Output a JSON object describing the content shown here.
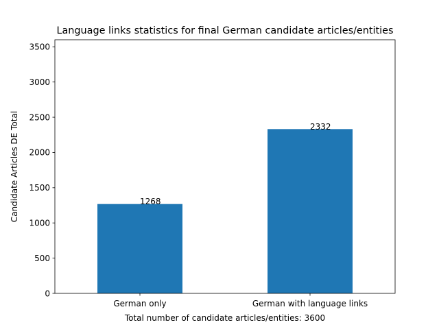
{
  "chart_data": {
    "type": "bar",
    "title": "Language links statistics for final German candidate articles/entities",
    "xlabel": "Total number of candidate articles/entities: 3600",
    "ylabel": "Candidate Articles DE Total",
    "categories": [
      "German only",
      "German with language links"
    ],
    "values": [
      1268,
      2332
    ],
    "data_labels": [
      "1268",
      "2332"
    ],
    "ylim": [
      0,
      3600
    ],
    "yticks": [
      0,
      500,
      1000,
      1500,
      2000,
      2500,
      3000,
      3500
    ],
    "grid": false,
    "legend": "none",
    "bar_color": "#1f77b4"
  }
}
